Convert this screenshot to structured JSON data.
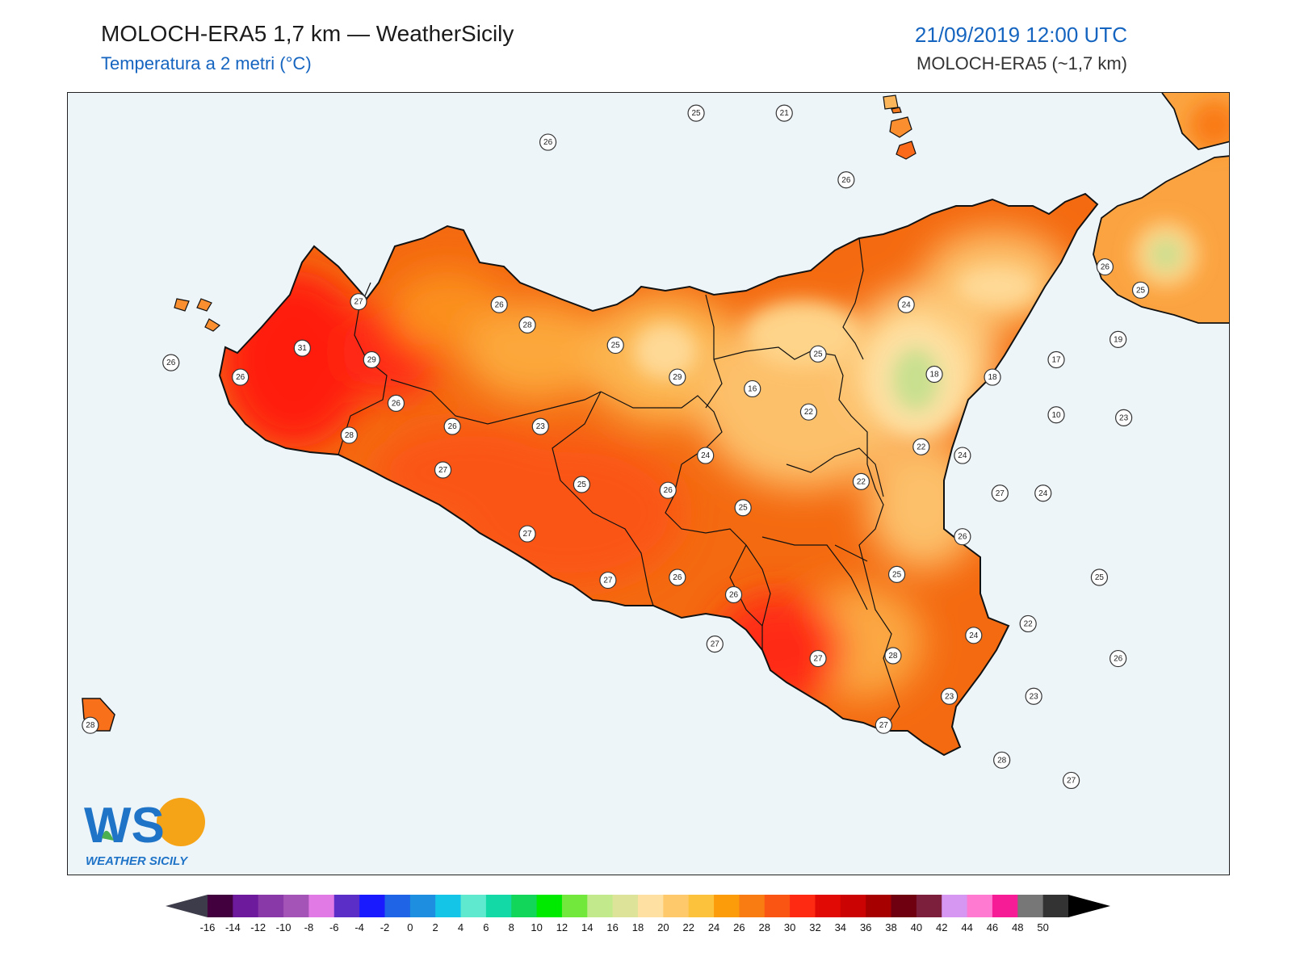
{
  "header": {
    "title": "MOLOCH-ERA5 1,7 km — WeatherSicily",
    "subtitle": "Temperatura a 2 metri (°C)",
    "datetime": "21/09/2019 12:00 UTC",
    "model": "MOLOCH-ERA5 (~1,7 km)"
  },
  "logo": {
    "letters": "WS",
    "name": "WEATHER SICILY"
  },
  "colors": {
    "sea": "#eef5f9",
    "land_base": "#f46a10",
    "hot": "#ff1e0f",
    "mild": "#fbbd55",
    "cool": "#fee4a6",
    "cold": "#c8e08f",
    "outline": "#111111"
  },
  "stations": [
    {
      "lon": 13.56,
      "lat": 38.68,
      "value": "26"
    },
    {
      "lon": 14.35,
      "lat": 38.78,
      "value": "25"
    },
    {
      "lon": 14.82,
      "lat": 38.78,
      "value": "21"
    },
    {
      "lon": 15.15,
      "lat": 38.55,
      "value": "26"
    },
    {
      "lon": 12.55,
      "lat": 38.13,
      "value": "27"
    },
    {
      "lon": 13.3,
      "lat": 38.12,
      "value": "26"
    },
    {
      "lon": 13.45,
      "lat": 38.05,
      "value": "28"
    },
    {
      "lon": 13.92,
      "lat": 37.98,
      "value": "25"
    },
    {
      "lon": 12.25,
      "lat": 37.97,
      "value": "31"
    },
    {
      "lon": 12.62,
      "lat": 37.93,
      "value": "29"
    },
    {
      "lon": 11.55,
      "lat": 37.92,
      "value": "26"
    },
    {
      "lon": 11.92,
      "lat": 37.87,
      "value": "26"
    },
    {
      "lon": 14.25,
      "lat": 37.87,
      "value": "29"
    },
    {
      "lon": 14.65,
      "lat": 37.83,
      "value": "16"
    },
    {
      "lon": 15.0,
      "lat": 37.95,
      "value": "25"
    },
    {
      "lon": 15.62,
      "lat": 37.88,
      "value": "18"
    },
    {
      "lon": 15.93,
      "lat": 37.87,
      "value": "18"
    },
    {
      "lon": 16.27,
      "lat": 37.93,
      "value": "17"
    },
    {
      "lon": 15.47,
      "lat": 38.12,
      "value": "24"
    },
    {
      "lon": 16.6,
      "lat": 38.0,
      "value": "19"
    },
    {
      "lon": 16.72,
      "lat": 38.17,
      "value": "25"
    },
    {
      "lon": 16.53,
      "lat": 38.25,
      "value": "26"
    },
    {
      "lon": 12.75,
      "lat": 37.78,
      "value": "26"
    },
    {
      "lon": 13.05,
      "lat": 37.7,
      "value": "26"
    },
    {
      "lon": 13.52,
      "lat": 37.7,
      "value": "23"
    },
    {
      "lon": 14.95,
      "lat": 37.75,
      "value": "22"
    },
    {
      "lon": 16.27,
      "lat": 37.74,
      "value": "10"
    },
    {
      "lon": 16.63,
      "lat": 37.73,
      "value": "23"
    },
    {
      "lon": 12.5,
      "lat": 37.67,
      "value": "28"
    },
    {
      "lon": 14.4,
      "lat": 37.6,
      "value": "24"
    },
    {
      "lon": 15.55,
      "lat": 37.63,
      "value": "22"
    },
    {
      "lon": 15.77,
      "lat": 37.6,
      "value": "24"
    },
    {
      "lon": 13.0,
      "lat": 37.55,
      "value": "27"
    },
    {
      "lon": 13.74,
      "lat": 37.5,
      "value": "25"
    },
    {
      "lon": 14.2,
      "lat": 37.48,
      "value": "26"
    },
    {
      "lon": 15.23,
      "lat": 37.51,
      "value": "22"
    },
    {
      "lon": 14.6,
      "lat": 37.42,
      "value": "25"
    },
    {
      "lon": 15.97,
      "lat": 37.47,
      "value": "27"
    },
    {
      "lon": 16.2,
      "lat": 37.47,
      "value": "24"
    },
    {
      "lon": 13.45,
      "lat": 37.33,
      "value": "27"
    },
    {
      "lon": 15.77,
      "lat": 37.32,
      "value": "26"
    },
    {
      "lon": 13.88,
      "lat": 37.17,
      "value": "27"
    },
    {
      "lon": 14.25,
      "lat": 37.18,
      "value": "26"
    },
    {
      "lon": 15.42,
      "lat": 37.19,
      "value": "25"
    },
    {
      "lon": 16.5,
      "lat": 37.18,
      "value": "25"
    },
    {
      "lon": 14.55,
      "lat": 37.12,
      "value": "26"
    },
    {
      "lon": 16.12,
      "lat": 37.02,
      "value": "22"
    },
    {
      "lon": 15.83,
      "lat": 36.98,
      "value": "24"
    },
    {
      "lon": 14.45,
      "lat": 36.95,
      "value": "27"
    },
    {
      "lon": 15.0,
      "lat": 36.9,
      "value": "27"
    },
    {
      "lon": 15.4,
      "lat": 36.91,
      "value": "28"
    },
    {
      "lon": 16.6,
      "lat": 36.9,
      "value": "26"
    },
    {
      "lon": 15.7,
      "lat": 36.77,
      "value": "23"
    },
    {
      "lon": 16.15,
      "lat": 36.77,
      "value": "23"
    },
    {
      "lon": 11.12,
      "lat": 36.67,
      "value": "28"
    },
    {
      "lon": 15.35,
      "lat": 36.67,
      "value": "27"
    },
    {
      "lon": 15.98,
      "lat": 36.55,
      "value": "28"
    },
    {
      "lon": 16.35,
      "lat": 36.48,
      "value": "27"
    }
  ],
  "colorbar": {
    "ticks": [
      "-16",
      "-14",
      "-12",
      "-10",
      "-8",
      "-6",
      "-4",
      "-2",
      "0",
      "2",
      "4",
      "6",
      "8",
      "10",
      "12",
      "14",
      "16",
      "18",
      "20",
      "22",
      "24",
      "26",
      "28",
      "30",
      "32",
      "34",
      "36",
      "38",
      "40",
      "42",
      "44",
      "46",
      "48",
      "50"
    ],
    "colors": [
      "#43003f",
      "#6d1a9c",
      "#8a3aa8",
      "#a453b6",
      "#e27ae6",
      "#5b2fc7",
      "#1a1aff",
      "#1f63e6",
      "#1e8fe0",
      "#14c5e8",
      "#5fead0",
      "#12d9a6",
      "#12d65a",
      "#00ea00",
      "#73e83c",
      "#c2ea8c",
      "#dde49a",
      "#fee0a3",
      "#fdc96b",
      "#fdc23c",
      "#fc9c0b",
      "#f97c12",
      "#fb5513",
      "#ff2a12",
      "#e10a05",
      "#cb0303",
      "#a60000",
      "#6e0010",
      "#7b1f3d",
      "#d597f2",
      "#ff7ad0",
      "#f51c96",
      "#777777",
      "#333333"
    ]
  }
}
